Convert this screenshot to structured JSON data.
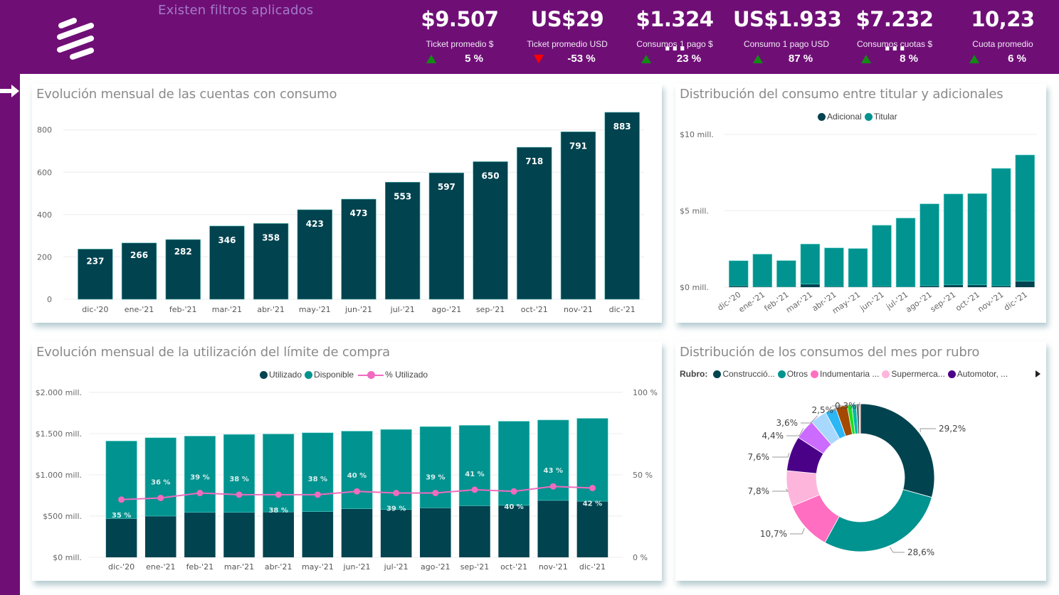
{
  "header": {
    "filter_note": "Existen filtros aplicados",
    "kpis": [
      {
        "value": "$9.507",
        "label": "Ticket promedio $",
        "trend": "up",
        "delta": "5 %"
      },
      {
        "value": "US$29",
        "label": "Ticket promedio USD",
        "trend": "down",
        "delta": "-53 %"
      },
      {
        "value": "$1.324 ...",
        "label": "Consumos 1 pago $",
        "trend": "up",
        "delta": "23 %"
      },
      {
        "value": "US$1.933",
        "label": "Consumo 1 pago USD",
        "trend": "up",
        "delta": "87 %"
      },
      {
        "value": "$7.232 ...",
        "label": "Consumos cuotas $",
        "trend": "up",
        "delta": "8 %"
      },
      {
        "value": "10,23",
        "label": "Cuota promedio",
        "trend": "up",
        "delta": "6 %"
      }
    ]
  },
  "colors": {
    "brand_purple": "#6f0f76",
    "dark_teal": "#01434f",
    "teal": "#01938f",
    "pink": "#f06bbf",
    "up_green": "#138a13",
    "down_red": "#ff0000"
  },
  "chart_data": [
    {
      "id": "cuentas",
      "type": "bar",
      "title": "Evolución mensual de las cuentas con consumo",
      "categories": [
        "dic-'20",
        "ene-'21",
        "feb-'21",
        "mar-'21",
        "abr-'21",
        "may-'21",
        "jun-'21",
        "jul-'21",
        "ago-'21",
        "sep-'21",
        "oct-'21",
        "nov-'21",
        "dic-'21"
      ],
      "values": [
        237,
        266,
        282,
        346,
        358,
        423,
        473,
        553,
        597,
        650,
        718,
        791,
        883
      ],
      "yticks": [
        0,
        200,
        400,
        600,
        800
      ],
      "ylim": [
        0,
        883
      ],
      "grid": true,
      "xlabel": "",
      "ylabel": ""
    },
    {
      "id": "titular",
      "type": "bar",
      "stacked": true,
      "title": "Distribución del consumo entre titular y adicionales",
      "categories": [
        "dic-'20",
        "ene-'21",
        "feb-'21",
        "mar-'21",
        "abr-'21",
        "may-'21",
        "jun-'21",
        "jul-'21",
        "ago-'21",
        "sep-'21",
        "oct-'21",
        "nov-'21",
        "dic-'21"
      ],
      "series": [
        {
          "name": "Adicional",
          "color": "#01434f",
          "values": [
            0.08,
            0.04,
            0.03,
            0.2,
            0.04,
            0.03,
            0.05,
            0.03,
            0.09,
            0.15,
            0.15,
            0.09,
            0.39
          ]
        },
        {
          "name": "Titular",
          "color": "#01938f",
          "values": [
            1.65,
            2.12,
            1.71,
            2.62,
            2.53,
            2.5,
            4.0,
            4.49,
            5.36,
            5.95,
            5.97,
            7.68,
            8.26
          ]
        }
      ],
      "yticks": [
        {
          "v": 0,
          "label": "$0 mill."
        },
        {
          "v": 5,
          "label": "$5 mill."
        },
        {
          "v": 10,
          "label": "$10 mill."
        }
      ],
      "ylim": [
        0,
        10
      ],
      "legend_position": "top-center",
      "grid": true
    },
    {
      "id": "limite",
      "type": "bar",
      "stacked": true,
      "combo_line": true,
      "title": "Evolución mensual de la utilización del límite de compra",
      "categories": [
        "dic-'20",
        "ene-'21",
        "feb-'21",
        "mar-'21",
        "abr-'21",
        "may-'21",
        "jun-'21",
        "jul-'21",
        "ago-'21",
        "sep-'21",
        "oct-'21",
        "nov-'21",
        "dic-'21"
      ],
      "series": [
        {
          "name": "Utilizado",
          "color": "#01434f",
          "values": [
            470,
            500,
            545,
            545,
            550,
            555,
            590,
            580,
            600,
            625,
            630,
            690,
            680
          ]
        },
        {
          "name": "Disponible",
          "color": "#01938f",
          "values": [
            940,
            950,
            925,
            945,
            945,
            955,
            940,
            970,
            985,
            975,
            1020,
            975,
            1005
          ]
        }
      ],
      "line_series": {
        "name": "% Utilizado",
        "color": "#f06bbf",
        "values": [
          35,
          36,
          39,
          38,
          38,
          38,
          40,
          39,
          39,
          41,
          40,
          43,
          42
        ],
        "labels": [
          "35 %",
          "36 %",
          "39 %",
          "38 %",
          "38 %",
          "38 %",
          "40 %",
          "39 %",
          "39 %",
          "41 %",
          "40 %",
          "43 %",
          "42 %"
        ],
        "label_pos": [
          "below",
          "above",
          "above",
          "above",
          "below",
          "above",
          "above",
          "below",
          "above",
          "above",
          "below",
          "above",
          "below"
        ]
      },
      "yticks": [
        {
          "v": 0,
          "label": "$0 mill."
        },
        {
          "v": 500,
          "label": "$500 mill."
        },
        {
          "v": 1000,
          "label": "$1.000 mill."
        },
        {
          "v": 1500,
          "label": "$1.500 mill."
        },
        {
          "v": 2000,
          "label": "$2.000 mill."
        }
      ],
      "ylim": [
        0,
        2000
      ],
      "y2ticks": [
        {
          "v": 0,
          "label": "0 %"
        },
        {
          "v": 50,
          "label": "50 %"
        },
        {
          "v": 100,
          "label": "100 %"
        }
      ],
      "y2lim": [
        0,
        100
      ],
      "legend_position": "top-right",
      "grid": true
    },
    {
      "id": "rubro",
      "type": "pie",
      "donut": true,
      "title": "Distribución de los consumos del mes por rubro",
      "legend_title": "Rubro:",
      "legend": [
        {
          "name": "Construcció...",
          "color": "#01434f"
        },
        {
          "name": "Otros",
          "color": "#01938f"
        },
        {
          "name": "Indumentaria ...",
          "color": "#ff6ec0"
        },
        {
          "name": "Supermerca...",
          "color": "#fdb5dc"
        },
        {
          "name": "Automotor, ...",
          "color": "#4b0088"
        }
      ],
      "slices": [
        {
          "value": 29.2,
          "label": "29,2%",
          "color": "#01434f"
        },
        {
          "value": 28.6,
          "label": "28,6%",
          "color": "#01938f"
        },
        {
          "value": 10.7,
          "label": "10,7%",
          "color": "#ff6ec0"
        },
        {
          "value": 7.8,
          "label": "7,8%",
          "color": "#fdb5dc"
        },
        {
          "value": 7.6,
          "label": "7,6%",
          "color": "#4b0088"
        },
        {
          "value": 4.4,
          "label": "4,4%",
          "color": "#cc6bff"
        },
        {
          "value": 3.6,
          "label": "3,6%",
          "color": "#a9d8ff"
        },
        {
          "value": 2.4,
          "label": "",
          "color": "#2bb6f5"
        },
        {
          "value": 2.5,
          "label": "2,5%",
          "color": "#a44a00"
        },
        {
          "value": 1.0,
          "label": "",
          "color": "#1ae01a"
        },
        {
          "value": 1.0,
          "label": "",
          "color": "#00b7a5"
        },
        {
          "value": 0.6,
          "label": "",
          "color": "#5a6b6e"
        },
        {
          "value": 0.3,
          "label": "0,3%",
          "color": "#ff9a8c"
        }
      ]
    }
  ]
}
